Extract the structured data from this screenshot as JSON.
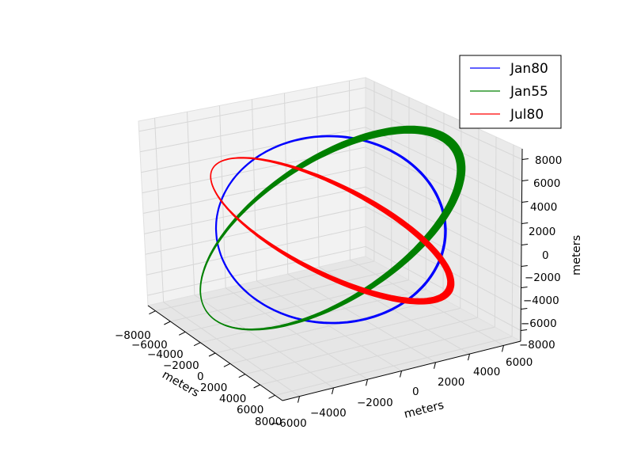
{
  "chart_data": {
    "type": "line3d",
    "title": "",
    "grid": true,
    "legend": {
      "placement": "top-right",
      "entries": [
        "Jan80",
        "Jan55",
        "Jul80"
      ]
    },
    "axes": {
      "x": {
        "label": "meters",
        "range": [
          -8000,
          8000
        ],
        "ticks": [
          "−8000",
          "−6000",
          "−4000",
          "−2000",
          "0",
          "2000",
          "4000",
          "6000",
          "8000"
        ]
      },
      "y": {
        "label": "meters",
        "range": [
          -6000,
          6000
        ],
        "ticks": [
          "−6000",
          "−4000",
          "−2000",
          "0",
          "2000",
          "4000",
          "6000"
        ]
      },
      "z": {
        "label": "meters",
        "range": [
          -8000,
          8000
        ],
        "ticks": [
          "−8000",
          "−6000",
          "−4000",
          "−2000",
          "0",
          "2000",
          "4000",
          "6000",
          "8000"
        ]
      }
    },
    "series": [
      {
        "name": "Jan80",
        "color": "#0000ff",
        "shape": "closed orbit ellipse",
        "extent_m": {
          "x": [
            -7000,
            7000
          ],
          "y": [
            -4000,
            4000
          ],
          "z": [
            -7000,
            7000
          ]
        }
      },
      {
        "name": "Jan55",
        "color": "#008000",
        "shape": "closed orbit ellipse",
        "extent_m": {
          "x": [
            -7000,
            7000
          ],
          "y": [
            -5000,
            5000
          ],
          "z": [
            -6000,
            6000
          ]
        }
      },
      {
        "name": "Jul80",
        "color": "#ff0000",
        "shape": "closed orbit ellipse",
        "extent_m": {
          "x": [
            -6000,
            6000
          ],
          "y": [
            -4000,
            4000
          ],
          "z": [
            -5000,
            5000
          ]
        }
      }
    ]
  }
}
